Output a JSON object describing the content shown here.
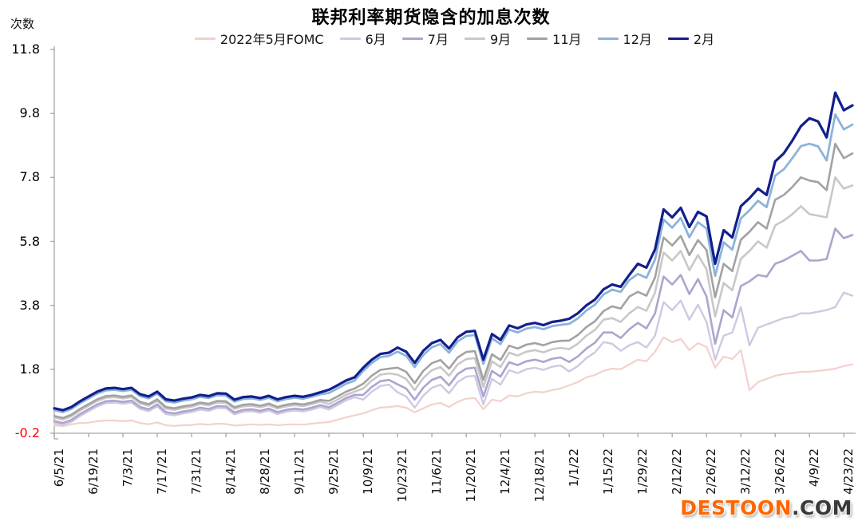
{
  "title": "联邦利率期货隐含的加息次数",
  "y_axis": {
    "unit_label": "次数",
    "ticks": [
      {
        "label": "11.8",
        "value": 11.8,
        "color": "#000000"
      },
      {
        "label": "9.8",
        "value": 9.8,
        "color": "#000000"
      },
      {
        "label": "7.8",
        "value": 7.8,
        "color": "#000000"
      },
      {
        "label": "5.8",
        "value": 5.8,
        "color": "#000000"
      },
      {
        "label": "3.8",
        "value": 3.8,
        "color": "#000000"
      },
      {
        "label": "1.8",
        "value": 1.8,
        "color": "#000000"
      },
      {
        "label": "-0.2",
        "value": -0.2,
        "color": "#FE0000"
      }
    ]
  },
  "watermark": {
    "brand": "DESTOON",
    "suffix": ".COM",
    "brand_color": "#FF6600",
    "suffix_color": "#3A3A3A"
  },
  "chart_data": {
    "type": "line",
    "title": "联邦利率期货隐含的加息次数",
    "ylabel": "次数",
    "ylim": [
      -0.2,
      11.8
    ],
    "y_tick_values": [
      11.8,
      9.8,
      7.8,
      5.8,
      3.8,
      1.8,
      -0.2
    ],
    "grid": false,
    "legend_position": "top",
    "axis_color": "#A6A6A6",
    "x_tick_labels": [
      "6/5/21",
      "6/19/21",
      "7/3/21",
      "7/17/21",
      "7/31/21",
      "8/14/21",
      "8/28/21",
      "9/11/21",
      "9/25/21",
      "10/9/21",
      "10/23/21",
      "11/6/21",
      "11/20/21",
      "12/4/21",
      "12/18/21",
      "1/1/22",
      "1/15/22",
      "1/29/22",
      "2/12/22",
      "2/26/22",
      "3/12/22",
      "3/26/22",
      "4/9/22",
      "4/23/22"
    ],
    "points_per_tick_interval": 4,
    "series": [
      {
        "name": "2022年5月FOMC",
        "color": "#F2D1CB",
        "width": 2.2,
        "values": [
          0.05,
          0.02,
          0.08,
          0.12,
          0.13,
          0.18,
          0.2,
          0.2,
          0.18,
          0.2,
          0.12,
          0.08,
          0.14,
          0.05,
          0.03,
          0.05,
          0.06,
          0.09,
          0.07,
          0.1,
          0.09,
          0.04,
          0.06,
          0.08,
          0.06,
          0.08,
          0.05,
          0.07,
          0.08,
          0.07,
          0.1,
          0.13,
          0.15,
          0.22,
          0.3,
          0.36,
          0.42,
          0.52,
          0.6,
          0.62,
          0.65,
          0.6,
          0.45,
          0.58,
          0.7,
          0.75,
          0.62,
          0.78,
          0.88,
          0.9,
          0.55,
          0.85,
          0.8,
          0.98,
          0.95,
          1.05,
          1.1,
          1.08,
          1.15,
          1.2,
          1.3,
          1.4,
          1.55,
          1.62,
          1.75,
          1.82,
          1.8,
          1.95,
          2.1,
          2.05,
          2.35,
          2.8,
          2.65,
          2.75,
          2.4,
          2.62,
          2.5,
          1.85,
          2.2,
          2.12,
          2.4,
          1.15,
          1.4,
          1.5,
          1.6,
          1.65,
          1.68,
          1.72,
          1.72,
          1.75,
          1.78,
          1.82,
          1.9,
          1.95
        ]
      },
      {
        "name": "6月",
        "color": "#CEC9E2",
        "width": 2.4,
        "values": [
          0.12,
          0.06,
          0.16,
          0.34,
          0.49,
          0.64,
          0.74,
          0.76,
          0.72,
          0.76,
          0.56,
          0.49,
          0.64,
          0.4,
          0.36,
          0.42,
          0.46,
          0.54,
          0.5,
          0.59,
          0.58,
          0.39,
          0.47,
          0.49,
          0.44,
          0.51,
          0.4,
          0.47,
          0.51,
          0.48,
          0.54,
          0.62,
          0.54,
          0.68,
          0.83,
          0.93,
          0.85,
          1.1,
          1.28,
          1.32,
          1.08,
          0.95,
          0.6,
          0.98,
          1.22,
          1.32,
          1.05,
          1.4,
          1.57,
          1.6,
          0.7,
          1.5,
          1.32,
          1.77,
          1.68,
          1.8,
          1.85,
          1.78,
          1.88,
          1.92,
          1.73,
          1.9,
          2.15,
          2.33,
          2.65,
          2.6,
          2.38,
          2.55,
          2.65,
          2.48,
          2.85,
          3.9,
          3.65,
          3.95,
          3.35,
          3.82,
          3.28,
          2.1,
          2.85,
          2.95,
          3.75,
          2.55,
          3.1,
          3.2,
          3.3,
          3.4,
          3.45,
          3.55,
          3.55,
          3.6,
          3.65,
          3.75,
          4.2,
          4.1
        ]
      },
      {
        "name": "7月",
        "color": "#AEA4CE",
        "width": 2.6,
        "values": [
          0.18,
          0.12,
          0.22,
          0.4,
          0.55,
          0.7,
          0.8,
          0.82,
          0.78,
          0.82,
          0.62,
          0.55,
          0.7,
          0.46,
          0.42,
          0.48,
          0.52,
          0.6,
          0.56,
          0.65,
          0.64,
          0.45,
          0.53,
          0.55,
          0.5,
          0.57,
          0.46,
          0.53,
          0.57,
          0.54,
          0.6,
          0.68,
          0.61,
          0.75,
          0.9,
          1.0,
          1.0,
          1.25,
          1.43,
          1.47,
          1.33,
          1.2,
          0.85,
          1.23,
          1.47,
          1.57,
          1.3,
          1.65,
          1.82,
          1.85,
          0.95,
          1.75,
          1.57,
          2.02,
          1.93,
          2.05,
          2.1,
          2.03,
          2.13,
          2.17,
          2.03,
          2.2,
          2.45,
          2.63,
          2.95,
          2.95,
          2.78,
          3.05,
          3.25,
          3.08,
          3.55,
          4.7,
          4.45,
          4.75,
          4.15,
          4.62,
          4.08,
          2.6,
          3.65,
          3.42,
          4.4,
          4.55,
          4.75,
          4.7,
          5.1,
          5.2,
          5.35,
          5.5,
          5.2,
          5.2,
          5.25,
          6.2,
          5.9,
          6.0
        ]
      },
      {
        "name": "9月",
        "color": "#C8C8C8",
        "width": 2.6,
        "values": [
          0.29,
          0.23,
          0.33,
          0.51,
          0.66,
          0.81,
          0.91,
          0.93,
          0.89,
          0.93,
          0.73,
          0.66,
          0.81,
          0.57,
          0.53,
          0.59,
          0.63,
          0.71,
          0.67,
          0.76,
          0.75,
          0.56,
          0.64,
          0.66,
          0.61,
          0.68,
          0.57,
          0.64,
          0.68,
          0.65,
          0.71,
          0.79,
          0.71,
          0.85,
          1.0,
          1.1,
          1.2,
          1.45,
          1.63,
          1.67,
          1.63,
          1.5,
          1.15,
          1.53,
          1.77,
          1.87,
          1.6,
          1.95,
          2.12,
          2.15,
          1.25,
          2.05,
          1.87,
          2.32,
          2.23,
          2.35,
          2.4,
          2.33,
          2.43,
          2.47,
          2.43,
          2.6,
          2.85,
          3.03,
          3.35,
          3.4,
          3.28,
          3.55,
          3.75,
          3.63,
          4.2,
          5.45,
          5.2,
          5.5,
          4.9,
          5.37,
          4.93,
          3.45,
          4.5,
          4.27,
          5.25,
          5.5,
          5.8,
          5.6,
          6.3,
          6.45,
          6.65,
          6.9,
          6.65,
          6.6,
          6.55,
          7.8,
          7.45,
          7.55
        ]
      },
      {
        "name": "11月",
        "color": "#A2A2A2",
        "width": 2.6,
        "values": [
          0.34,
          0.28,
          0.38,
          0.56,
          0.71,
          0.86,
          0.96,
          0.98,
          0.94,
          0.98,
          0.78,
          0.71,
          0.86,
          0.62,
          0.58,
          0.64,
          0.68,
          0.76,
          0.72,
          0.81,
          0.8,
          0.61,
          0.69,
          0.71,
          0.66,
          0.73,
          0.62,
          0.69,
          0.73,
          0.7,
          0.76,
          0.84,
          0.81,
          0.95,
          1.1,
          1.2,
          1.35,
          1.6,
          1.78,
          1.82,
          1.85,
          1.72,
          1.37,
          1.75,
          1.99,
          2.09,
          1.82,
          2.17,
          2.34,
          2.37,
          1.47,
          2.27,
          2.09,
          2.54,
          2.45,
          2.57,
          2.62,
          2.55,
          2.65,
          2.69,
          2.7,
          2.87,
          3.12,
          3.3,
          3.62,
          3.77,
          3.7,
          4.07,
          4.22,
          4.1,
          4.67,
          5.92,
          5.67,
          5.97,
          5.37,
          5.84,
          5.53,
          4.05,
          5.1,
          4.87,
          5.85,
          6.1,
          6.4,
          6.2,
          7.1,
          7.25,
          7.5,
          7.8,
          7.7,
          7.65,
          7.4,
          8.85,
          8.4,
          8.55
        ]
      },
      {
        "name": "12月",
        "color": "#8DB3DA",
        "width": 2.8,
        "values": [
          0.52,
          0.46,
          0.56,
          0.74,
          0.89,
          1.04,
          1.14,
          1.16,
          1.12,
          1.16,
          0.96,
          0.89,
          1.04,
          0.8,
          0.76,
          0.82,
          0.86,
          0.94,
          0.9,
          0.99,
          0.98,
          0.79,
          0.87,
          0.89,
          0.84,
          0.91,
          0.8,
          0.87,
          0.91,
          0.88,
          0.94,
          1.02,
          1.06,
          1.2,
          1.35,
          1.45,
          1.75,
          2.0,
          2.18,
          2.22,
          2.35,
          2.22,
          1.87,
          2.25,
          2.49,
          2.59,
          2.32,
          2.67,
          2.84,
          2.87,
          1.97,
          2.77,
          2.59,
          3.04,
          2.95,
          3.07,
          3.12,
          3.05,
          3.15,
          3.19,
          3.22,
          3.39,
          3.64,
          3.82,
          4.14,
          4.29,
          4.22,
          4.59,
          4.78,
          4.66,
          5.23,
          6.48,
          6.23,
          6.53,
          5.93,
          6.4,
          6.2,
          4.72,
          5.77,
          5.54,
          6.52,
          6.77,
          7.07,
          6.87,
          7.85,
          8.05,
          8.4,
          8.78,
          8.85,
          8.77,
          8.33,
          9.77,
          9.3,
          9.45
        ]
      },
      {
        "name": "2月",
        "color": "#121F8C",
        "width": 3.2,
        "values": [
          0.58,
          0.52,
          0.62,
          0.8,
          0.95,
          1.1,
          1.2,
          1.22,
          1.18,
          1.22,
          1.02,
          0.95,
          1.1,
          0.86,
          0.82,
          0.88,
          0.92,
          1.0,
          0.96,
          1.05,
          1.04,
          0.85,
          0.93,
          0.95,
          0.9,
          0.97,
          0.86,
          0.93,
          0.97,
          0.94,
          1.0,
          1.08,
          1.16,
          1.3,
          1.45,
          1.55,
          1.85,
          2.1,
          2.28,
          2.32,
          2.48,
          2.35,
          2.0,
          2.38,
          2.62,
          2.72,
          2.45,
          2.8,
          2.97,
          3.0,
          2.1,
          2.9,
          2.72,
          3.17,
          3.08,
          3.2,
          3.25,
          3.18,
          3.28,
          3.32,
          3.38,
          3.55,
          3.8,
          3.98,
          4.3,
          4.45,
          4.38,
          4.75,
          5.1,
          4.98,
          5.55,
          6.8,
          6.55,
          6.85,
          6.25,
          6.72,
          6.58,
          5.1,
          6.15,
          5.92,
          6.9,
          7.15,
          7.45,
          7.25,
          8.3,
          8.55,
          8.95,
          9.4,
          9.65,
          9.55,
          9.05,
          10.45,
          9.9,
          10.05
        ]
      }
    ]
  }
}
